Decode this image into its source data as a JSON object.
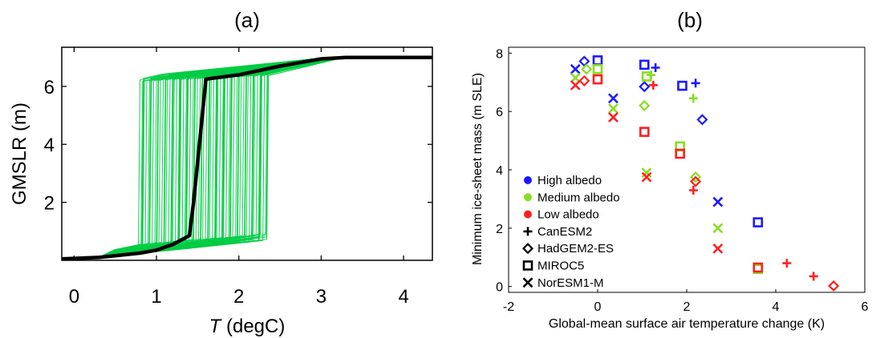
{
  "chart_data": [
    {
      "panel": "(a)",
      "type": "line",
      "xlabel_italic": "T",
      "xlabel_rest": " (degC)",
      "ylabel": "GMSLR (m)",
      "xlim": [
        -0.15,
        4.35
      ],
      "ylim": [
        0,
        7.35
      ],
      "xticks": [
        0,
        1,
        2,
        3,
        4
      ],
      "yticks": [
        2,
        4,
        6
      ],
      "ensemble_color": "#00cc44",
      "mean_color": "#000000",
      "ensemble_jump_range": [
        0.78,
        2.35
      ],
      "series": [
        {
          "x": [
            -0.15,
            0.3,
            0.8,
            1.0,
            1.2,
            1.4,
            1.45,
            1.6,
            2.0,
            2.5,
            3.0,
            3.3,
            4.35
          ],
          "y": [
            0.05,
            0.1,
            0.25,
            0.35,
            0.55,
            0.85,
            2.0,
            6.25,
            6.4,
            6.7,
            6.95,
            7.0,
            7.0
          ]
        }
      ]
    },
    {
      "panel": "(b)",
      "type": "scatter",
      "xlabel": "Global-mean surface air temperature change (K)",
      "ylabel": "Minimum ice-sheet mass (m SLE)",
      "xlim": [
        -2,
        6
      ],
      "ylim": [
        -0.2,
        8.2
      ],
      "xticks": [
        -2,
        0,
        2,
        4,
        6
      ],
      "yticks": [
        0,
        2,
        4,
        6,
        8
      ],
      "legend": {
        "position": "bottom-left",
        "colors": [
          {
            "label": "High albedo",
            "color": "#1a1aff"
          },
          {
            "label": "Medium albedo",
            "color": "#88dd22"
          },
          {
            "label": "Low albedo",
            "color": "#ff2020"
          }
        ],
        "models": [
          {
            "label": "CanESM2",
            "marker": "plus"
          },
          {
            "label": "HadGEM2-ES",
            "marker": "diamond"
          },
          {
            "label": "MIROC5",
            "marker": "square"
          },
          {
            "label": "NorESM1-M",
            "marker": "x"
          }
        ]
      },
      "points": [
        {
          "x": 1.3,
          "y": 7.5,
          "marker": "plus",
          "color": "#1a1aff"
        },
        {
          "x": 2.2,
          "y": 6.97,
          "marker": "plus",
          "color": "#1a1aff"
        },
        {
          "x": 1.2,
          "y": 7.25,
          "marker": "plus",
          "color": "#88dd22"
        },
        {
          "x": 2.15,
          "y": 6.45,
          "marker": "plus",
          "color": "#88dd22"
        },
        {
          "x": 1.25,
          "y": 6.9,
          "marker": "plus",
          "color": "#ff2020"
        },
        {
          "x": 2.15,
          "y": 3.3,
          "marker": "plus",
          "color": "#ff2020"
        },
        {
          "x": 4.25,
          "y": 0.8,
          "marker": "plus",
          "color": "#ff2020"
        },
        {
          "x": 4.85,
          "y": 0.35,
          "marker": "plus",
          "color": "#ff2020"
        },
        {
          "x": -0.3,
          "y": 7.72,
          "marker": "diamond",
          "color": "#1a1aff"
        },
        {
          "x": 1.05,
          "y": 6.85,
          "marker": "diamond",
          "color": "#1a1aff"
        },
        {
          "x": 2.35,
          "y": 5.72,
          "marker": "diamond",
          "color": "#1a1aff"
        },
        {
          "x": -0.25,
          "y": 7.45,
          "marker": "diamond",
          "color": "#88dd22"
        },
        {
          "x": 1.05,
          "y": 6.2,
          "marker": "diamond",
          "color": "#88dd22"
        },
        {
          "x": 2.2,
          "y": 3.75,
          "marker": "diamond",
          "color": "#88dd22"
        },
        {
          "x": -0.3,
          "y": 7.05,
          "marker": "diamond",
          "color": "#ff2020"
        },
        {
          "x": 2.2,
          "y": 3.6,
          "marker": "diamond",
          "color": "#ff2020"
        },
        {
          "x": 5.3,
          "y": 0.02,
          "marker": "diamond",
          "color": "#ff2020"
        },
        {
          "x": 0.0,
          "y": 7.75,
          "marker": "square",
          "color": "#1a1aff"
        },
        {
          "x": 1.05,
          "y": 7.6,
          "marker": "square",
          "color": "#1a1aff"
        },
        {
          "x": 1.9,
          "y": 6.88,
          "marker": "square",
          "color": "#1a1aff"
        },
        {
          "x": 3.6,
          "y": 2.2,
          "marker": "square",
          "color": "#1a1aff"
        },
        {
          "x": 0.0,
          "y": 7.45,
          "marker": "square",
          "color": "#88dd22"
        },
        {
          "x": 1.1,
          "y": 7.2,
          "marker": "square",
          "color": "#88dd22"
        },
        {
          "x": 1.85,
          "y": 4.8,
          "marker": "square",
          "color": "#88dd22"
        },
        {
          "x": 3.6,
          "y": 0.6,
          "marker": "square",
          "color": "#88dd22"
        },
        {
          "x": 0.0,
          "y": 7.1,
          "marker": "square",
          "color": "#ff2020"
        },
        {
          "x": 1.05,
          "y": 5.3,
          "marker": "square",
          "color": "#ff2020"
        },
        {
          "x": 1.85,
          "y": 4.55,
          "marker": "square",
          "color": "#ff2020"
        },
        {
          "x": 3.6,
          "y": 0.65,
          "marker": "square",
          "color": "#ff2020"
        },
        {
          "x": -0.5,
          "y": 7.45,
          "marker": "x",
          "color": "#1a1aff"
        },
        {
          "x": 0.35,
          "y": 6.45,
          "marker": "x",
          "color": "#1a1aff"
        },
        {
          "x": 2.7,
          "y": 2.9,
          "marker": "x",
          "color": "#1a1aff"
        },
        {
          "x": -0.5,
          "y": 7.15,
          "marker": "x",
          "color": "#88dd22"
        },
        {
          "x": 0.35,
          "y": 6.1,
          "marker": "x",
          "color": "#88dd22"
        },
        {
          "x": 1.1,
          "y": 3.9,
          "marker": "x",
          "color": "#88dd22"
        },
        {
          "x": 2.7,
          "y": 2.0,
          "marker": "x",
          "color": "#88dd22"
        },
        {
          "x": -0.5,
          "y": 6.9,
          "marker": "x",
          "color": "#ff2020"
        },
        {
          "x": 0.35,
          "y": 5.8,
          "marker": "x",
          "color": "#ff2020"
        },
        {
          "x": 1.1,
          "y": 3.75,
          "marker": "x",
          "color": "#ff2020"
        },
        {
          "x": 2.7,
          "y": 1.3,
          "marker": "x",
          "color": "#ff2020"
        }
      ]
    }
  ]
}
